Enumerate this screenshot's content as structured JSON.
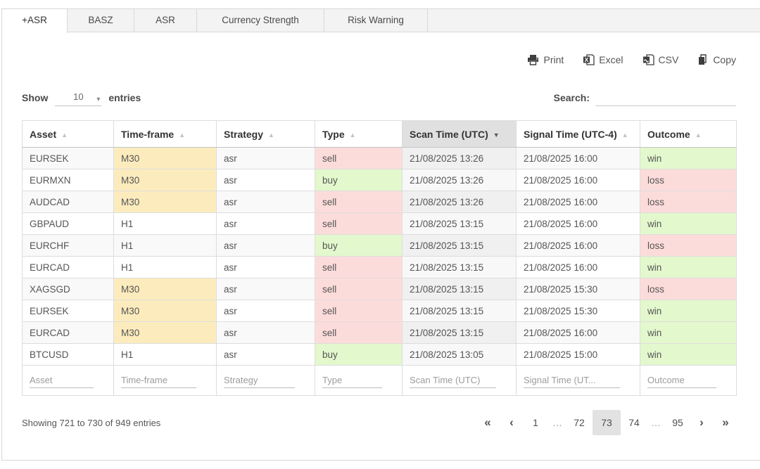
{
  "tabs": [
    {
      "label": "+ASR",
      "active": true
    },
    {
      "label": "BASZ",
      "active": false
    },
    {
      "label": "ASR",
      "active": false
    },
    {
      "label": "Currency Strength",
      "active": false
    },
    {
      "label": "Risk Warning",
      "active": false
    }
  ],
  "export_buttons": [
    {
      "icon": "print-icon",
      "label": "Print"
    },
    {
      "icon": "excel-icon",
      "label": "Excel"
    },
    {
      "icon": "csv-icon",
      "label": "CSV"
    },
    {
      "icon": "copy-icon",
      "label": "Copy"
    }
  ],
  "length_control": {
    "label_before": "Show",
    "selected": "10",
    "label_after": "entries"
  },
  "search": {
    "label": "Search:",
    "value": ""
  },
  "table": {
    "columns": [
      {
        "label": "Asset",
        "sorted": "none"
      },
      {
        "label": "Time-frame",
        "sorted": "none"
      },
      {
        "label": "Strategy",
        "sorted": "none"
      },
      {
        "label": "Type",
        "sorted": "none"
      },
      {
        "label": "Scan Time (UTC)",
        "sorted": "desc"
      },
      {
        "label": "Signal Time (UTC-4)",
        "sorted": "none"
      },
      {
        "label": "Outcome",
        "sorted": "none"
      }
    ],
    "rows": [
      {
        "asset": "EURSEK",
        "timeframe": "M30",
        "strategy": "asr",
        "type": "sell",
        "scan_time": "21/08/2025 13:26",
        "signal_time": "21/08/2025 16:00",
        "outcome": "win"
      },
      {
        "asset": "EURMXN",
        "timeframe": "M30",
        "strategy": "asr",
        "type": "buy",
        "scan_time": "21/08/2025 13:26",
        "signal_time": "21/08/2025 16:00",
        "outcome": "loss"
      },
      {
        "asset": "AUDCAD",
        "timeframe": "M30",
        "strategy": "asr",
        "type": "sell",
        "scan_time": "21/08/2025 13:26",
        "signal_time": "21/08/2025 16:00",
        "outcome": "loss"
      },
      {
        "asset": "GBPAUD",
        "timeframe": "H1",
        "strategy": "asr",
        "type": "sell",
        "scan_time": "21/08/2025 13:15",
        "signal_time": "21/08/2025 16:00",
        "outcome": "win"
      },
      {
        "asset": "EURCHF",
        "timeframe": "H1",
        "strategy": "asr",
        "type": "buy",
        "scan_time": "21/08/2025 13:15",
        "signal_time": "21/08/2025 16:00",
        "outcome": "loss"
      },
      {
        "asset": "EURCAD",
        "timeframe": "H1",
        "strategy": "asr",
        "type": "sell",
        "scan_time": "21/08/2025 13:15",
        "signal_time": "21/08/2025 16:00",
        "outcome": "win"
      },
      {
        "asset": "XAGSGD",
        "timeframe": "M30",
        "strategy": "asr",
        "type": "sell",
        "scan_time": "21/08/2025 13:15",
        "signal_time": "21/08/2025 15:30",
        "outcome": "loss"
      },
      {
        "asset": "EURSEK",
        "timeframe": "M30",
        "strategy": "asr",
        "type": "sell",
        "scan_time": "21/08/2025 13:15",
        "signal_time": "21/08/2025 15:30",
        "outcome": "win"
      },
      {
        "asset": "EURCAD",
        "timeframe": "M30",
        "strategy": "asr",
        "type": "sell",
        "scan_time": "21/08/2025 13:15",
        "signal_time": "21/08/2025 16:00",
        "outcome": "win"
      },
      {
        "asset": "BTCUSD",
        "timeframe": "H1",
        "strategy": "asr",
        "type": "buy",
        "scan_time": "21/08/2025 13:05",
        "signal_time": "21/08/2025 15:00",
        "outcome": "win"
      }
    ],
    "footer_filters": [
      {
        "placeholder": "Asset"
      },
      {
        "placeholder": "Time-frame"
      },
      {
        "placeholder": "Strategy"
      },
      {
        "placeholder": "Type"
      },
      {
        "placeholder": "Scan Time (UTC)"
      },
      {
        "placeholder": "Signal Time (UT..."
      },
      {
        "placeholder": "Outcome"
      }
    ]
  },
  "info_text": "Showing 721 to 730 of 949 entries",
  "pagination": {
    "first": "«",
    "prev": "‹",
    "next": "›",
    "last": "»",
    "pages": [
      "1",
      "…",
      "72",
      "73",
      "74",
      "…",
      "95"
    ],
    "current": "73"
  },
  "colors": {
    "timeframe_highlight": "#fcecbd",
    "sell_loss_highlight": "#fcdcda",
    "buy_win_highlight": "#e3f8cd",
    "sorted_header_bg": "#e0e0e0"
  }
}
